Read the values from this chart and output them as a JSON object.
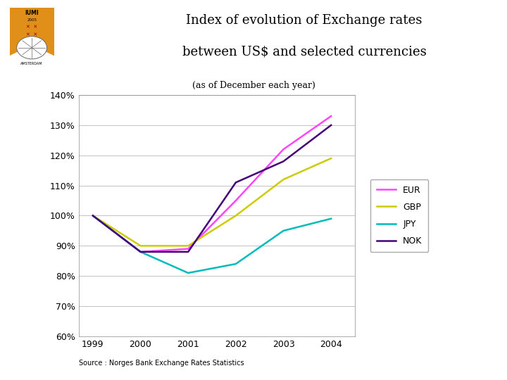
{
  "title_line1": "Index of evolution of Exchange rates",
  "title_line2": "between US$ and selected currencies",
  "subtitle": "(as of December each year)",
  "source": "Source : Norges Bank Exchange Rates Statistics",
  "years": [
    1999,
    2000,
    2001,
    2002,
    2003,
    2004
  ],
  "EUR": [
    100,
    88,
    89,
    105,
    122,
    133
  ],
  "GBP": [
    100,
    90,
    90,
    100,
    112,
    119
  ],
  "JPY": [
    100,
    88,
    81,
    84,
    95,
    99
  ],
  "NOK": [
    100,
    88,
    88,
    111,
    118,
    130
  ],
  "EUR_color": "#FF44FF",
  "GBP_color": "#CCCC00",
  "JPY_color": "#00BBBB",
  "NOK_color": "#440077",
  "ylim_min": 60,
  "ylim_max": 140,
  "yticks": [
    60,
    70,
    80,
    90,
    100,
    110,
    120,
    130,
    140
  ],
  "background_color": "#FFFFFF",
  "line_width": 1.8,
  "header_separator_color": "#C8A020",
  "header_separator_color2": "#000000"
}
